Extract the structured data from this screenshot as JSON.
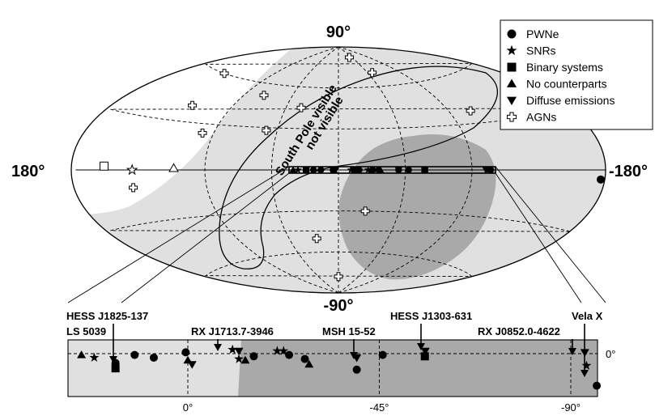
{
  "chart_data": {
    "type": "scatter",
    "title": "",
    "projection": "Aitoff (galactic coordinates)",
    "main_map": {
      "pole_labels": {
        "north": "90°",
        "south": "-90°"
      },
      "edge_labels": {
        "left": "180°",
        "right": "-180°"
      },
      "region_labels": {
        "visible": "South Pole  visible",
        "not_visible": "not visible"
      }
    },
    "legend": {
      "placement": "top-right",
      "entries": [
        {
          "key": "pwne",
          "label": "PWNe",
          "marker": "filled-circle"
        },
        {
          "key": "snr",
          "label": "SNRs",
          "marker": "filled-star"
        },
        {
          "key": "binary",
          "label": "Binary systems",
          "marker": "filled-square"
        },
        {
          "key": "nocp",
          "label": "No counterparts",
          "marker": "filled-triangle-up"
        },
        {
          "key": "diffuse",
          "label": "Diffuse emissions",
          "marker": "filled-triangle-down"
        },
        {
          "key": "agn",
          "label": "AGNs",
          "marker": "open-cross"
        }
      ]
    },
    "main_points": [
      {
        "type": "agn",
        "l": 141,
        "b": 60
      },
      {
        "type": "agn",
        "l": 122,
        "b": 40
      },
      {
        "type": "agn",
        "l": 72,
        "b": 52
      },
      {
        "type": "agn",
        "l": 98,
        "b": 24
      },
      {
        "type": "agn",
        "l": 53,
        "b": 28
      },
      {
        "type": "agn",
        "l": -37,
        "b": 82
      },
      {
        "type": "agn",
        "l": -52,
        "b": 70
      },
      {
        "type": "agn",
        "l": -107,
        "b": 38
      },
      {
        "type": "agn",
        "l": 140,
        "b": -10
      },
      {
        "type": "agn",
        "l": -20,
        "b": -30
      },
      {
        "type": "agn",
        "l": 20,
        "b": -50
      },
      {
        "type": "agn",
        "l": 0,
        "b": -78
      },
      {
        "type": "agn",
        "l": 32,
        "b": 45
      },
      {
        "type": "binary-open",
        "l": 158,
        "b": 2
      },
      {
        "type": "snr-open",
        "l": 139,
        "b": 0
      },
      {
        "type": "nocp-open",
        "l": 111,
        "b": 1
      },
      {
        "type": "pwne",
        "l": -184,
        "b": -7
      }
    ],
    "inset": {
      "x_ticks": [
        0,
        -45,
        -90
      ],
      "x_tick_labels": [
        "0°",
        "-45°",
        "-90°"
      ],
      "y_tick_label": "0°",
      "source_labels": [
        {
          "text": "HESS J1825-137",
          "l": 17.8,
          "b": -0.7
        },
        {
          "text": "LS 5039",
          "l": 16.9,
          "b": -1.1
        },
        {
          "text": "RX J1713.7-3946",
          "l": 347.3,
          "b": -0.5
        },
        {
          "text": "MSH 15-52",
          "l": 320.3,
          "b": -1.2
        },
        {
          "text": "HESS J1303-631",
          "l": 304.2,
          "b": -0.3
        },
        {
          "text": "RX J0852.0-4622",
          "l": 266.3,
          "b": -1.2
        },
        {
          "text": "Vela X",
          "l": 263.9,
          "b": -3.3
        }
      ],
      "points": [
        {
          "type": "nocp",
          "l": 25,
          "b": -0.1
        },
        {
          "type": "snr",
          "l": 22,
          "b": -0.3
        },
        {
          "type": "binary",
          "l": 17,
          "b": -1.1
        },
        {
          "type": "pwne",
          "l": 17,
          "b": -0.7
        },
        {
          "type": "pwne",
          "l": 12.5,
          "b": -0.1
        },
        {
          "type": "pwne",
          "l": 8,
          "b": -0.3
        },
        {
          "type": "pwne",
          "l": 0.5,
          "b": 0.1
        },
        {
          "type": "nocp",
          "l": 0,
          "b": -0.5
        },
        {
          "type": "diffuse",
          "l": -1,
          "b": -0.8
        },
        {
          "type": "snr",
          "l": -10.5,
          "b": 0.3
        },
        {
          "type": "diffuse",
          "l": -12,
          "b": 0.2
        },
        {
          "type": "snr",
          "l": -12,
          "b": -0.4
        },
        {
          "type": "nocp",
          "l": -13.5,
          "b": -0.5
        },
        {
          "type": "pwne",
          "l": -15.5,
          "b": -0.2
        },
        {
          "type": "snr",
          "l": -21,
          "b": 0.2
        },
        {
          "type": "snr",
          "l": -22.5,
          "b": 0.2
        },
        {
          "type": "pwne",
          "l": -23.8,
          "b": -0.1
        },
        {
          "type": "pwne",
          "l": -27.5,
          "b": -0.4
        },
        {
          "type": "nocp",
          "l": -28.5,
          "b": -0.8
        },
        {
          "type": "diffuse",
          "l": -39.7,
          "b": -0.3
        },
        {
          "type": "pwne",
          "l": -39.7,
          "b": -1.2
        },
        {
          "type": "pwne",
          "l": -45.8,
          "b": -0.1
        },
        {
          "type": "binary",
          "l": -55.7,
          "b": -0.2
        },
        {
          "type": "diffuse",
          "l": -55.8,
          "b": 0.2
        },
        {
          "type": "diffuse",
          "l": -93.3,
          "b": 0.1
        },
        {
          "type": "snr",
          "l": -93.7,
          "b": -0.9
        },
        {
          "type": "pwne",
          "l": -96.1,
          "b": -2.4
        }
      ]
    }
  }
}
